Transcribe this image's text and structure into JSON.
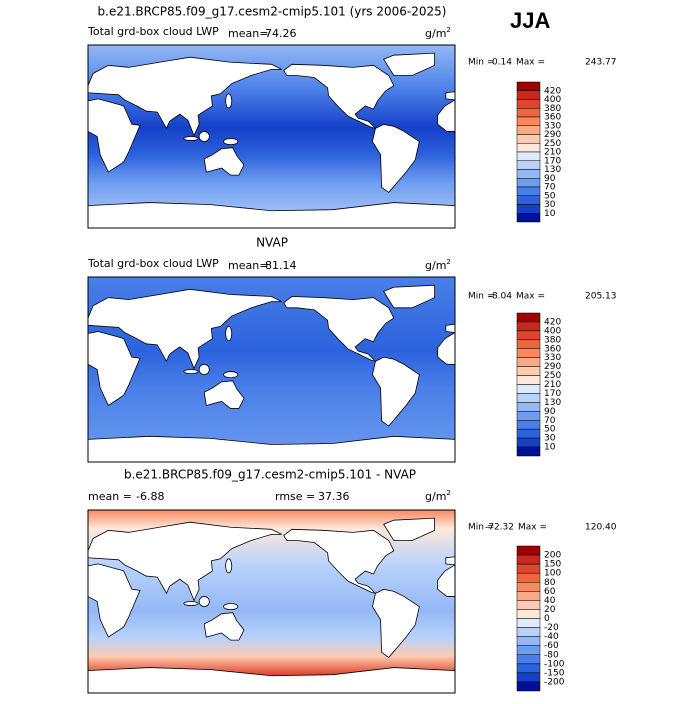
{
  "season": "JJA",
  "panels": [
    {
      "title": "b.e21.BRCP85.f09_g17.cesm2-cmip5.101 (yrs 2006-2025)",
      "field": "Total grd-box cloud LWP",
      "mean_label": "mean=",
      "mean": "74.26",
      "units": "g/m",
      "units_power": "2",
      "min_label": "Min =",
      "min": "0.14",
      "max_label": "Max =",
      "max": "243.77",
      "colorbar": {
        "levels": [
          420,
          400,
          380,
          360,
          330,
          290,
          250,
          210,
          170,
          130,
          90,
          70,
          50,
          30,
          10
        ],
        "colors": [
          "#a00000",
          "#c8281e",
          "#e0452e",
          "#f06440",
          "#f88860",
          "#fbaa88",
          "#fdcbb0",
          "#fde8da",
          "#ddeaff",
          "#b8d2fb",
          "#94b8f5",
          "#6e9cf0",
          "#4a7fe8",
          "#2c62dc",
          "#1540c8",
          "#00109a"
        ]
      }
    },
    {
      "title": "NVAP",
      "field": "Total grd-box cloud LWP",
      "mean_label": "mean=",
      "mean": "81.14",
      "units": "g/m",
      "units_power": "2",
      "min_label": "Min =",
      "min": "-8.04",
      "max_label": "Max =",
      "max": "205.13",
      "colorbar": {
        "levels": [
          420,
          400,
          380,
          360,
          330,
          290,
          250,
          210,
          170,
          130,
          90,
          70,
          50,
          30,
          10
        ],
        "colors": [
          "#a00000",
          "#c8281e",
          "#e0452e",
          "#f06440",
          "#f88860",
          "#fbaa88",
          "#fdcbb0",
          "#fde8da",
          "#ddeaff",
          "#b8d2fb",
          "#94b8f5",
          "#6e9cf0",
          "#4a7fe8",
          "#2c62dc",
          "#1540c8",
          "#00109a"
        ]
      }
    },
    {
      "title": "b.e21.BRCP85.f09_g17.cesm2-cmip5.101 - NVAP",
      "mean_label": "mean =",
      "mean": "-6.88",
      "rmse_label": "rmse =",
      "rmse": "37.36",
      "units": "g/m",
      "units_power": "2",
      "min_label": "Min =",
      "min": "-72.32",
      "max_label": "Max =",
      "max": "120.40",
      "colorbar": {
        "levels": [
          200,
          150,
          100,
          80,
          60,
          40,
          20,
          0,
          -20,
          -40,
          -60,
          -80,
          -100,
          -150,
          -200
        ],
        "colors": [
          "#a00000",
          "#c8281e",
          "#e0452e",
          "#f06440",
          "#f88860",
          "#fbaa88",
          "#fdcbb0",
          "#fde8da",
          "#ddeaff",
          "#b8d2fb",
          "#94b8f5",
          "#6e9cf0",
          "#4a7fe8",
          "#2c62dc",
          "#1540c8",
          "#00109a"
        ]
      }
    }
  ]
}
